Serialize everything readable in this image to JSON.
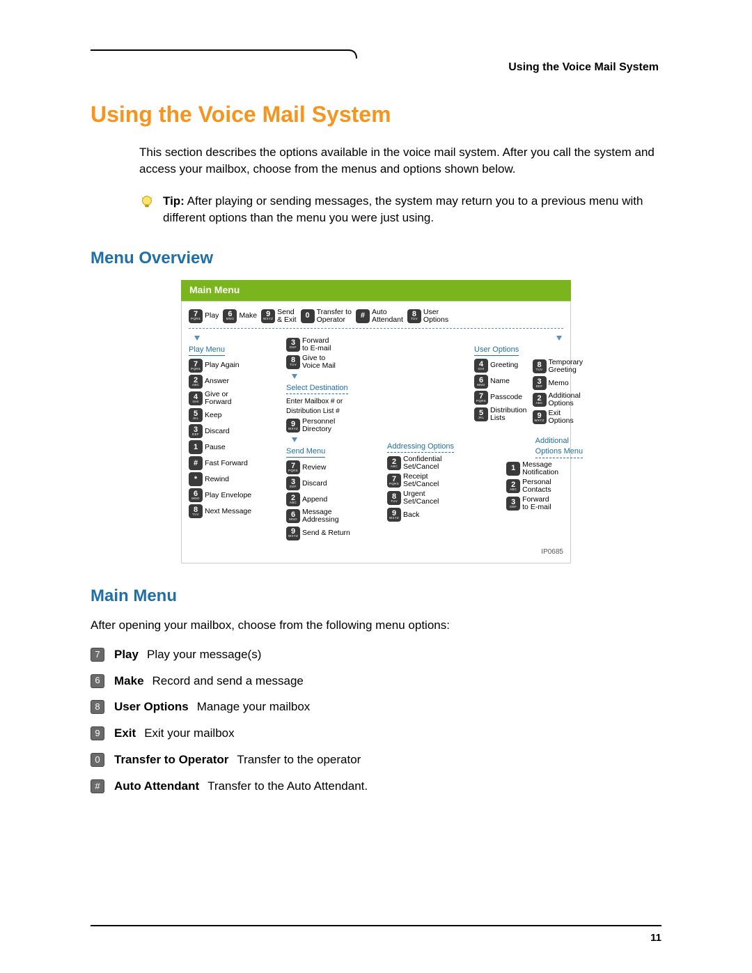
{
  "colors": {
    "title": "#f7941d",
    "section": "#1f6fa8",
    "diagram_header_bg": "#7ab51d",
    "diagram_link": "#5a8fbd",
    "key_bg": "#3a3a3a",
    "mm_key_bg": "#6a6a6a",
    "text": "#000000",
    "rule": "#000000"
  },
  "header": {
    "running_title": "Using the Voice Mail System"
  },
  "title": "Using the Voice Mail System",
  "intro": "This section describes the options available in the voice mail system. After you call the system and access your mailbox, choose from the menus and options shown below.",
  "tip": {
    "label": "Tip:",
    "text": " After playing or sending messages, the system may return you to a previous menu with different options than the menu you were just using."
  },
  "menu_overview_heading": "Menu Overview",
  "diagram": {
    "header": "Main Menu",
    "ip": "IP0685",
    "top": [
      {
        "key": "7",
        "sub": "PQRS",
        "label": "Play"
      },
      {
        "key": "6",
        "sub": "MNO",
        "label": "Make"
      },
      {
        "key": "9",
        "sub": "WXYZ",
        "label": "Send\n& Exit"
      },
      {
        "key": "0",
        "sub": "",
        "label": "Transfer to\nOperator"
      },
      {
        "key": "#",
        "sub": "",
        "label": "Auto\nAttendant"
      },
      {
        "key": "8",
        "sub": "TUV",
        "label": "User\nOptions"
      }
    ],
    "play_menu": {
      "title": "Play Menu",
      "items": [
        {
          "key": "7",
          "sub": "PQRS",
          "label": "Play Again"
        },
        {
          "key": "2",
          "sub": "ABC",
          "label": "Answer"
        },
        {
          "key": "4",
          "sub": "GHI",
          "label": "Give or\nForward"
        },
        {
          "key": "5",
          "sub": "JKL",
          "label": "Keep"
        },
        {
          "key": "3",
          "sub": "DEF",
          "label": "Discard"
        },
        {
          "key": "1",
          "sub": "",
          "label": "Pause"
        },
        {
          "key": "#",
          "sub": "",
          "label": "Fast Forward"
        },
        {
          "key": "*",
          "sub": "",
          "label": "Rewind"
        },
        {
          "key": "6",
          "sub": "MNO",
          "label": "Play Envelope"
        },
        {
          "key": "8",
          "sub": "TUV",
          "label": "Next Message"
        }
      ]
    },
    "mid_col": {
      "fwd_items": [
        {
          "key": "3",
          "sub": "DEF",
          "label": "Forward\nto E-mail"
        },
        {
          "key": "8",
          "sub": "TUV",
          "label": "Give to\nVoice Mail"
        }
      ],
      "select_dest_title": "Select Destination",
      "select_dest_text": "Enter Mailbox # or\nDistribution List #",
      "select_dest_item": {
        "key": "9",
        "sub": "WXYZ",
        "label": "Personnel\nDirectory"
      },
      "send_menu_title": "Send Menu",
      "send_items": [
        {
          "key": "7",
          "sub": "PQRS",
          "label": "Review"
        },
        {
          "key": "3",
          "sub": "DEF",
          "label": "Discard"
        },
        {
          "key": "2",
          "sub": "ABC",
          "label": "Append"
        },
        {
          "key": "6",
          "sub": "MNO",
          "label": "Message\nAddressing"
        },
        {
          "key": "9",
          "sub": "WXYZ",
          "label": "Send & Return"
        }
      ]
    },
    "addressing": {
      "title": "Addressing Options",
      "items": [
        {
          "key": "2",
          "sub": "ABC",
          "label": "Confidential\nSet/Cancel"
        },
        {
          "key": "7",
          "sub": "PQRS",
          "label": "Receipt\nSet/Cancel"
        },
        {
          "key": "8",
          "sub": "TUV",
          "label": "Urgent\nSet/Cancel"
        },
        {
          "key": "9",
          "sub": "WXYZ",
          "label": "Back"
        }
      ]
    },
    "user_options": {
      "title": "User Options",
      "left": [
        {
          "key": "4",
          "sub": "GHI",
          "label": "Greeting"
        },
        {
          "key": "6",
          "sub": "MNO",
          "label": "Name"
        },
        {
          "key": "7",
          "sub": "PQRS",
          "label": "Passcode"
        },
        {
          "key": "5",
          "sub": "JKL",
          "label": "Distribution\nLists"
        }
      ],
      "right": [
        {
          "key": "8",
          "sub": "TUV",
          "label": "Temporary\nGreeting"
        },
        {
          "key": "3",
          "sub": "DEF",
          "label": "Memo"
        },
        {
          "key": "2",
          "sub": "ABC",
          "label": "Additional\nOptions"
        },
        {
          "key": "9",
          "sub": "WXYZ",
          "label": "Exit\nOptions"
        }
      ]
    },
    "additional": {
      "title": "Additional\nOptions Menu",
      "items": [
        {
          "key": "1",
          "sub": "",
          "label": "Message\nNotification"
        },
        {
          "key": "2",
          "sub": "ABC",
          "label": "Personal\nContacts"
        },
        {
          "key": "3",
          "sub": "DEF",
          "label": "Forward\nto E-mail"
        }
      ]
    }
  },
  "main_menu_heading": "Main Menu",
  "main_menu_intro": "After opening your mailbox, choose from the following menu options:",
  "main_menu_items": [
    {
      "key": "7",
      "label": "Play",
      "desc": "Play your message(s)"
    },
    {
      "key": "6",
      "label": "Make",
      "desc": "Record and send a message"
    },
    {
      "key": "8",
      "label": "User Options",
      "desc": "Manage your mailbox"
    },
    {
      "key": "9",
      "label": "Exit",
      "desc": "Exit your mailbox"
    },
    {
      "key": "0",
      "label": "Transfer to Operator",
      "desc": "Transfer to the operator"
    },
    {
      "key": "#",
      "label": "Auto Attendant",
      "desc": "Transfer to the Auto Attendant."
    }
  ],
  "page_number": "11"
}
